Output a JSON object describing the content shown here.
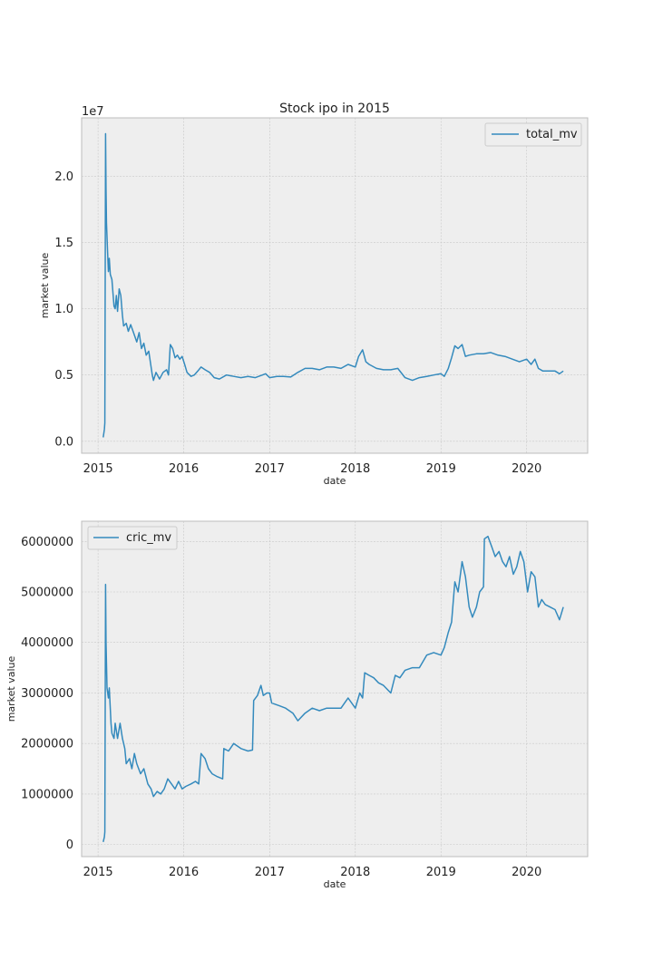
{
  "chart_data": [
    {
      "type": "line",
      "title": "Stock ipo in 2015",
      "xlabel": "date",
      "ylabel": "market value",
      "offset_label": "1e7",
      "x_ticks": [
        "2015",
        "2016",
        "2017",
        "2018",
        "2019",
        "2020"
      ],
      "x_range": [
        "2014-10-23",
        "2020-09-17"
      ],
      "y_ticks": [
        "0.0",
        "0.5",
        "1.0",
        "1.5",
        "2.0"
      ],
      "y_tick_values": [
        0,
        5000000,
        10000000,
        15000000,
        20000000
      ],
      "ylim": [
        -900000,
        24400000
      ],
      "grid": true,
      "legend_position": "top-right",
      "series": [
        {
          "name": "total_mv",
          "color": "#348abd",
          "points": [
            [
              "2015-01-23",
              300000
            ],
            [
              "2015-01-28",
              900000
            ],
            [
              "2015-01-30",
              1400000
            ],
            [
              "2015-02-02",
              23200000
            ],
            [
              "2015-02-04",
              19000000
            ],
            [
              "2015-02-06",
              16500000
            ],
            [
              "2015-02-10",
              14500000
            ],
            [
              "2015-02-14",
              12800000
            ],
            [
              "2015-02-18",
              13800000
            ],
            [
              "2015-02-22",
              12600000
            ],
            [
              "2015-03-01",
              12200000
            ],
            [
              "2015-03-10",
              10200000
            ],
            [
              "2015-03-15",
              10000000
            ],
            [
              "2015-03-20",
              11000000
            ],
            [
              "2015-03-25",
              9800000
            ],
            [
              "2015-04-01",
              11500000
            ],
            [
              "2015-04-08",
              11000000
            ],
            [
              "2015-04-15",
              9500000
            ],
            [
              "2015-04-20",
              8700000
            ],
            [
              "2015-05-01",
              8900000
            ],
            [
              "2015-05-10",
              8300000
            ],
            [
              "2015-05-20",
              8800000
            ],
            [
              "2015-06-01",
              8200000
            ],
            [
              "2015-06-15",
              7500000
            ],
            [
              "2015-06-25",
              8200000
            ],
            [
              "2015-07-05",
              7000000
            ],
            [
              "2015-07-15",
              7400000
            ],
            [
              "2015-07-25",
              6500000
            ],
            [
              "2015-08-05",
              6800000
            ],
            [
              "2015-08-20",
              5000000
            ],
            [
              "2015-08-25",
              4600000
            ],
            [
              "2015-09-05",
              5200000
            ],
            [
              "2015-09-20",
              4700000
            ],
            [
              "2015-10-05",
              5200000
            ],
            [
              "2015-10-20",
              5400000
            ],
            [
              "2015-10-28",
              5000000
            ],
            [
              "2015-11-05",
              7300000
            ],
            [
              "2015-11-15",
              7000000
            ],
            [
              "2015-11-25",
              6300000
            ],
            [
              "2015-12-05",
              6500000
            ],
            [
              "2015-12-15",
              6200000
            ],
            [
              "2015-12-25",
              6400000
            ],
            [
              "2016-01-05",
              5800000
            ],
            [
              "2016-01-15",
              5200000
            ],
            [
              "2016-02-01",
              4900000
            ],
            [
              "2016-02-15",
              5000000
            ],
            [
              "2016-03-01",
              5300000
            ],
            [
              "2016-03-15",
              5600000
            ],
            [
              "2016-04-01",
              5400000
            ],
            [
              "2016-04-20",
              5200000
            ],
            [
              "2016-05-10",
              4800000
            ],
            [
              "2016-06-01",
              4700000
            ],
            [
              "2016-07-01",
              5000000
            ],
            [
              "2016-08-01",
              4900000
            ],
            [
              "2016-09-01",
              4800000
            ],
            [
              "2016-10-01",
              4900000
            ],
            [
              "2016-11-01",
              4800000
            ],
            [
              "2016-12-01",
              5000000
            ],
            [
              "2016-12-15",
              5100000
            ],
            [
              "2017-01-01",
              4800000
            ],
            [
              "2017-02-01",
              4900000
            ],
            [
              "2017-03-01",
              4900000
            ],
            [
              "2017-04-01",
              4850000
            ],
            [
              "2017-05-01",
              5200000
            ],
            [
              "2017-06-01",
              5500000
            ],
            [
              "2017-07-01",
              5500000
            ],
            [
              "2017-08-01",
              5400000
            ],
            [
              "2017-09-01",
              5600000
            ],
            [
              "2017-10-01",
              5600000
            ],
            [
              "2017-11-01",
              5500000
            ],
            [
              "2017-12-01",
              5800000
            ],
            [
              "2018-01-01",
              5600000
            ],
            [
              "2018-01-15",
              6400000
            ],
            [
              "2018-02-01",
              6900000
            ],
            [
              "2018-02-15",
              6000000
            ],
            [
              "2018-03-01",
              5800000
            ],
            [
              "2018-04-01",
              5500000
            ],
            [
              "2018-05-01",
              5400000
            ],
            [
              "2018-06-01",
              5400000
            ],
            [
              "2018-07-01",
              5500000
            ],
            [
              "2018-08-01",
              4800000
            ],
            [
              "2018-09-01",
              4600000
            ],
            [
              "2018-10-01",
              4800000
            ],
            [
              "2018-11-01",
              4900000
            ],
            [
              "2018-12-01",
              5000000
            ],
            [
              "2019-01-01",
              5100000
            ],
            [
              "2019-01-15",
              4900000
            ],
            [
              "2019-02-01",
              5500000
            ],
            [
              "2019-02-15",
              6300000
            ],
            [
              "2019-03-01",
              7200000
            ],
            [
              "2019-03-15",
              7000000
            ],
            [
              "2019-04-01",
              7300000
            ],
            [
              "2019-04-15",
              6400000
            ],
            [
              "2019-05-01",
              6500000
            ],
            [
              "2019-06-01",
              6600000
            ],
            [
              "2019-07-01",
              6600000
            ],
            [
              "2019-08-01",
              6700000
            ],
            [
              "2019-09-01",
              6500000
            ],
            [
              "2019-10-01",
              6400000
            ],
            [
              "2019-11-01",
              6200000
            ],
            [
              "2019-12-01",
              6000000
            ],
            [
              "2020-01-01",
              6200000
            ],
            [
              "2020-01-20",
              5800000
            ],
            [
              "2020-02-05",
              6200000
            ],
            [
              "2020-02-20",
              5500000
            ],
            [
              "2020-03-10",
              5300000
            ],
            [
              "2020-04-01",
              5300000
            ],
            [
              "2020-05-01",
              5300000
            ],
            [
              "2020-05-20",
              5100000
            ],
            [
              "2020-06-05",
              5300000
            ]
          ]
        }
      ]
    },
    {
      "type": "line",
      "xlabel": "date",
      "ylabel": "market value",
      "x_ticks": [
        "2015",
        "2016",
        "2017",
        "2018",
        "2019",
        "2020"
      ],
      "x_range": [
        "2014-10-23",
        "2020-09-17"
      ],
      "y_ticks": [
        "0",
        "1000000",
        "2000000",
        "3000000",
        "4000000",
        "5000000",
        "6000000"
      ],
      "y_tick_values": [
        0,
        1000000,
        2000000,
        3000000,
        4000000,
        5000000,
        6000000
      ],
      "ylim": [
        -240000,
        6400000
      ],
      "grid": true,
      "legend_position": "top-left",
      "series": [
        {
          "name": "cric_mv",
          "color": "#348abd",
          "points": [
            [
              "2015-01-23",
              50000
            ],
            [
              "2015-01-28",
              150000
            ],
            [
              "2015-01-30",
              250000
            ],
            [
              "2015-02-02",
              5150000
            ],
            [
              "2015-02-04",
              4000000
            ],
            [
              "2015-02-08",
              3100000
            ],
            [
              "2015-02-14",
              2900000
            ],
            [
              "2015-02-18",
              3100000
            ],
            [
              "2015-02-25",
              2400000
            ],
            [
              "2015-03-01",
              2200000
            ],
            [
              "2015-03-10",
              2100000
            ],
            [
              "2015-03-15",
              2400000
            ],
            [
              "2015-03-25",
              2100000
            ],
            [
              "2015-04-05",
              2400000
            ],
            [
              "2015-04-15",
              2100000
            ],
            [
              "2015-04-25",
              1900000
            ],
            [
              "2015-05-01",
              1600000
            ],
            [
              "2015-05-15",
              1700000
            ],
            [
              "2015-05-25",
              1500000
            ],
            [
              "2015-06-05",
              1800000
            ],
            [
              "2015-06-15",
              1600000
            ],
            [
              "2015-07-01",
              1400000
            ],
            [
              "2015-07-15",
              1500000
            ],
            [
              "2015-08-01",
              1200000
            ],
            [
              "2015-08-15",
              1100000
            ],
            [
              "2015-08-25",
              950000
            ],
            [
              "2015-09-10",
              1050000
            ],
            [
              "2015-09-25",
              1000000
            ],
            [
              "2015-10-10",
              1100000
            ],
            [
              "2015-10-25",
              1300000
            ],
            [
              "2015-11-10",
              1200000
            ],
            [
              "2015-11-25",
              1100000
            ],
            [
              "2015-12-10",
              1250000
            ],
            [
              "2015-12-25",
              1100000
            ],
            [
              "2016-01-10",
              1150000
            ],
            [
              "2016-02-01",
              1200000
            ],
            [
              "2016-02-20",
              1250000
            ],
            [
              "2016-03-05",
              1200000
            ],
            [
              "2016-03-15",
              1800000
            ],
            [
              "2016-04-01",
              1700000
            ],
            [
              "2016-04-15",
              1500000
            ],
            [
              "2016-05-01",
              1400000
            ],
            [
              "2016-05-20",
              1350000
            ],
            [
              "2016-06-15",
              1300000
            ],
            [
              "2016-06-20",
              1900000
            ],
            [
              "2016-07-10",
              1850000
            ],
            [
              "2016-08-01",
              2000000
            ],
            [
              "2016-09-01",
              1900000
            ],
            [
              "2016-10-01",
              1850000
            ],
            [
              "2016-10-20",
              1870000
            ],
            [
              "2016-10-25",
              2850000
            ],
            [
              "2016-11-10",
              2950000
            ],
            [
              "2016-11-25",
              3150000
            ],
            [
              "2016-12-05",
              2950000
            ],
            [
              "2016-12-20",
              3000000
            ],
            [
              "2017-01-01",
              3000000
            ],
            [
              "2017-01-10",
              2800000
            ],
            [
              "2017-02-10",
              2750000
            ],
            [
              "2017-03-10",
              2700000
            ],
            [
              "2017-04-10",
              2600000
            ],
            [
              "2017-05-01",
              2450000
            ],
            [
              "2017-06-01",
              2600000
            ],
            [
              "2017-07-01",
              2700000
            ],
            [
              "2017-08-01",
              2650000
            ],
            [
              "2017-09-01",
              2700000
            ],
            [
              "2017-10-01",
              2700000
            ],
            [
              "2017-11-01",
              2700000
            ],
            [
              "2017-12-01",
              2900000
            ],
            [
              "2018-01-01",
              2700000
            ],
            [
              "2018-01-20",
              3000000
            ],
            [
              "2018-02-01",
              2900000
            ],
            [
              "2018-02-10",
              3400000
            ],
            [
              "2018-03-01",
              3350000
            ],
            [
              "2018-03-20",
              3300000
            ],
            [
              "2018-04-10",
              3200000
            ],
            [
              "2018-05-01",
              3150000
            ],
            [
              "2018-06-01",
              3000000
            ],
            [
              "2018-06-20",
              3350000
            ],
            [
              "2018-07-10",
              3300000
            ],
            [
              "2018-08-01",
              3450000
            ],
            [
              "2018-09-01",
              3500000
            ],
            [
              "2018-10-01",
              3500000
            ],
            [
              "2018-11-01",
              3750000
            ],
            [
              "2018-12-01",
              3800000
            ],
            [
              "2019-01-01",
              3750000
            ],
            [
              "2019-01-15",
              3900000
            ],
            [
              "2019-02-01",
              4200000
            ],
            [
              "2019-02-15",
              4400000
            ],
            [
              "2019-03-01",
              5200000
            ],
            [
              "2019-03-15",
              5000000
            ],
            [
              "2019-04-01",
              5600000
            ],
            [
              "2019-04-15",
              5300000
            ],
            [
              "2019-05-01",
              4700000
            ],
            [
              "2019-05-15",
              4500000
            ],
            [
              "2019-06-01",
              4700000
            ],
            [
              "2019-06-15",
              5000000
            ],
            [
              "2019-07-01",
              5100000
            ],
            [
              "2019-07-05",
              6050000
            ],
            [
              "2019-07-20",
              6100000
            ],
            [
              "2019-08-05",
              5900000
            ],
            [
              "2019-08-20",
              5700000
            ],
            [
              "2019-09-05",
              5800000
            ],
            [
              "2019-09-20",
              5600000
            ],
            [
              "2019-10-05",
              5500000
            ],
            [
              "2019-10-20",
              5700000
            ],
            [
              "2019-11-05",
              5350000
            ],
            [
              "2019-11-20",
              5500000
            ],
            [
              "2019-12-05",
              5800000
            ],
            [
              "2019-12-20",
              5600000
            ],
            [
              "2020-01-05",
              5000000
            ],
            [
              "2020-01-20",
              5400000
            ],
            [
              "2020-02-05",
              5300000
            ],
            [
              "2020-02-20",
              4700000
            ],
            [
              "2020-03-05",
              4850000
            ],
            [
              "2020-03-20",
              4750000
            ],
            [
              "2020-04-10",
              4700000
            ],
            [
              "2020-05-01",
              4650000
            ],
            [
              "2020-05-20",
              4450000
            ],
            [
              "2020-06-05",
              4700000
            ]
          ]
        }
      ]
    }
  ]
}
